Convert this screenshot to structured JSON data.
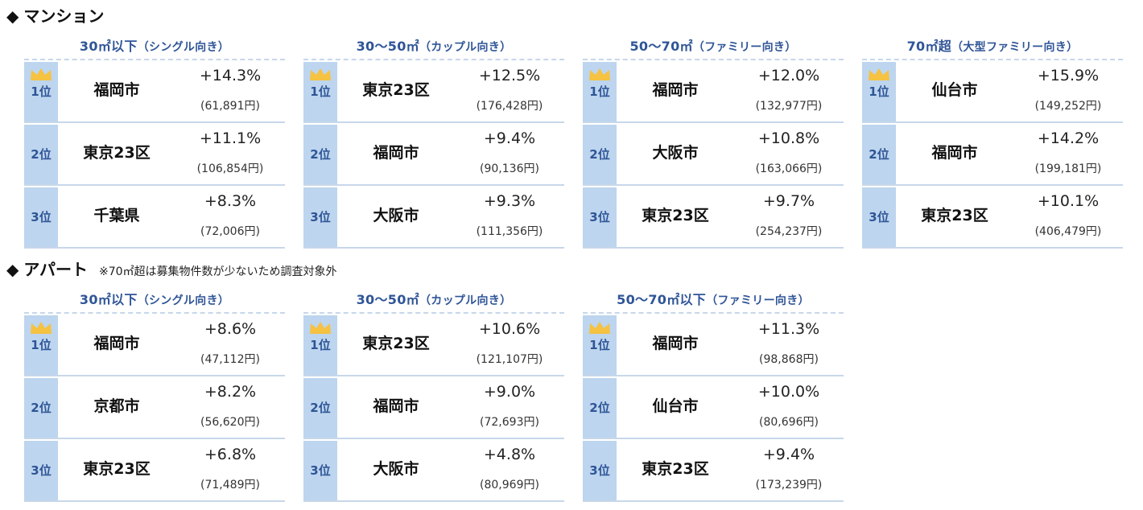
{
  "mansion": {
    "title": "マンション",
    "groups": [
      {
        "head_main": "30㎡以下",
        "head_sub": "（シングル向き）",
        "rows": [
          {
            "rank": "1位",
            "city": "福岡市",
            "pct": "+14.3%",
            "price": "(61,891円)"
          },
          {
            "rank": "2位",
            "city": "東京23区",
            "pct": "+11.1%",
            "price": "(106,854円)"
          },
          {
            "rank": "3位",
            "city": "千葉県",
            "pct": "+8.3%",
            "price": "(72,006円)"
          }
        ]
      },
      {
        "head_main": "30～50㎡",
        "head_sub": "（カップル向き）",
        "rows": [
          {
            "rank": "1位",
            "city": "東京23区",
            "pct": "+12.5%",
            "price": "(176,428円)"
          },
          {
            "rank": "2位",
            "city": "福岡市",
            "pct": "+9.4%",
            "price": "(90,136円)"
          },
          {
            "rank": "3位",
            "city": "大阪市",
            "pct": "+9.3%",
            "price": "(111,356円)"
          }
        ]
      },
      {
        "head_main": "50～70㎡",
        "head_sub": "（ファミリー向き）",
        "rows": [
          {
            "rank": "1位",
            "city": "福岡市",
            "pct": "+12.0%",
            "price": "(132,977円)"
          },
          {
            "rank": "2位",
            "city": "大阪市",
            "pct": "+10.8%",
            "price": "(163,066円)"
          },
          {
            "rank": "3位",
            "city": "東京23区",
            "pct": "+9.7%",
            "price": "(254,237円)"
          }
        ]
      },
      {
        "head_main": "70㎡超",
        "head_sub": "（大型ファミリー向き）",
        "rows": [
          {
            "rank": "1位",
            "city": "仙台市",
            "pct": "+15.9%",
            "price": "(149,252円)"
          },
          {
            "rank": "2位",
            "city": "福岡市",
            "pct": "+14.2%",
            "price": "(199,181円)"
          },
          {
            "rank": "3位",
            "city": "東京23区",
            "pct": "+10.1%",
            "price": "(406,479円)"
          }
        ]
      }
    ]
  },
  "apart": {
    "title": "アパート",
    "note": "※70㎡超は募集物件数が少ないため調査対象外",
    "groups": [
      {
        "head_main": "30㎡以下",
        "head_sub": "（シングル向き）",
        "rows": [
          {
            "rank": "1位",
            "city": "福岡市",
            "pct": "+8.6%",
            "price": "(47,112円)"
          },
          {
            "rank": "2位",
            "city": "京都市",
            "pct": "+8.2%",
            "price": "(56,620円)"
          },
          {
            "rank": "3位",
            "city": "東京23区",
            "pct": "+6.8%",
            "price": "(71,489円)"
          }
        ]
      },
      {
        "head_main": "30～50㎡",
        "head_sub": "（カップル向き）",
        "rows": [
          {
            "rank": "1位",
            "city": "東京23区",
            "pct": "+10.6%",
            "price": "(121,107円)"
          },
          {
            "rank": "2位",
            "city": "福岡市",
            "pct": "+9.0%",
            "price": "(72,693円)"
          },
          {
            "rank": "3位",
            "city": "大阪市",
            "pct": "+4.8%",
            "price": "(80,969円)"
          }
        ]
      },
      {
        "head_main": "50～70㎡以下",
        "head_sub": "（ファミリー向き）",
        "rows": [
          {
            "rank": "1位",
            "city": "福岡市",
            "pct": "+11.3%",
            "price": "(98,868円)"
          },
          {
            "rank": "2位",
            "city": "仙台市",
            "pct": "+10.0%",
            "price": "(80,696円)"
          },
          {
            "rank": "3位",
            "city": "東京23区",
            "pct": "+9.4%",
            "price": "(173,239円)"
          }
        ]
      }
    ]
  },
  "colors": {
    "accent_text": "#2f5597",
    "rank_background": "#bdd5ee",
    "divider": "#c7d7ea",
    "crown": "#f5c242"
  },
  "icons": {
    "section_marker": "diamond-icon",
    "first_place": "crown-icon"
  }
}
